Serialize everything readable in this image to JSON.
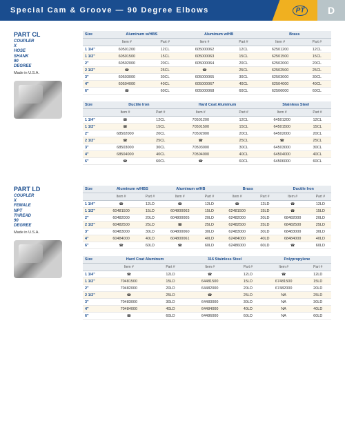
{
  "header": {
    "title": "Special Cam & Groove — 90 Degree Elbows",
    "logo": "PT",
    "letter": "D"
  },
  "parts": [
    {
      "title": "PART CL",
      "desc": "COUPLER X HOSE SHANK 90 DEGREE",
      "made": "Made in U.S.A.",
      "tables": [
        {
          "materials": [
            "Aluminum w/HBS",
            "Aluminum w/HB",
            "Brass"
          ],
          "cols_per_material": 2,
          "sub_headers": [
            "Item #",
            "Part #"
          ],
          "rows": [
            {
              "size": "1 1/4\"",
              "cells": [
                "60501200",
                "12CL",
                "605000062",
                "12CL",
                "62501200",
                "12CL"
              ]
            },
            {
              "size": "1 1/2\"",
              "cells": [
                "60501500",
                "15CL",
                "605000063",
                "15CL",
                "62501500",
                "15CL"
              ]
            },
            {
              "size": "2\"",
              "cells": [
                "60502000",
                "20CL",
                "605000064",
                "20CL",
                "62502000",
                "20CL"
              ]
            },
            {
              "size": "2 1/2\"",
              "cells": [
                "☎",
                "25CL",
                "☎",
                "25CL",
                "62502500",
                "25CL"
              ]
            },
            {
              "size": "3\"",
              "cells": [
                "60503000",
                "30CL",
                "605000065",
                "30CL",
                "62503000",
                "30CL"
              ]
            },
            {
              "size": "4\"",
              "cells": [
                "60504000",
                "40CL",
                "605000067",
                "40CL",
                "62504000",
                "40CL"
              ]
            },
            {
              "size": "6\"",
              "cells": [
                "☎",
                "60CL",
                "605000068",
                "60CL",
                "62506000",
                "60CL"
              ]
            }
          ]
        },
        {
          "materials": [
            "Ductile Iron",
            "Hard Coat Aluminum",
            "Stainless Steel"
          ],
          "cols_per_material": 2,
          "sub_headers": [
            "Item #",
            "Part #"
          ],
          "rows": [
            {
              "size": "1 1/4\"",
              "cells": [
                "☎",
                "12CL",
                "70501200",
                "12CL",
                "64501200",
                "12CL"
              ]
            },
            {
              "size": "1 1/2\"",
              "cells": [
                "☎",
                "15CL",
                "70501500",
                "15CL",
                "64501500",
                "15CL"
              ]
            },
            {
              "size": "2\"",
              "cells": [
                "68502000",
                "20CL",
                "70502000",
                "20CL",
                "64502000",
                "20CL"
              ]
            },
            {
              "size": "2 1/2\"",
              "cells": [
                "☎",
                "25CL",
                "☎",
                "25CL",
                "☎",
                "25CL"
              ]
            },
            {
              "size": "3\"",
              "cells": [
                "68503000",
                "30CL",
                "70503000",
                "30CL",
                "64503000",
                "30CL"
              ]
            },
            {
              "size": "4\"",
              "cells": [
                "68504000",
                "40CL",
                "70504000",
                "40CL",
                "64504000",
                "40CL"
              ]
            },
            {
              "size": "6\"",
              "cells": [
                "☎",
                "60CL",
                "☎",
                "60CL",
                "64506000",
                "60CL"
              ]
            }
          ]
        }
      ]
    },
    {
      "title": "PART LD",
      "desc": "COUPLER X FEMALE NPT THREAD 90 DEGREE",
      "made": "Made in U.S.A.",
      "tables": [
        {
          "materials": [
            "Aluminum w/HBS",
            "Aluminum w/HB",
            "Brass",
            "Ductile Iron"
          ],
          "cols_per_material": 2,
          "sub_headers": [
            "Item #",
            "Part #"
          ],
          "rows": [
            {
              "size": "1 1/4\"",
              "cells": [
                "☎",
                "12LD",
                "☎",
                "12LD",
                "☎",
                "12LD",
                "☎",
                "12LD"
              ]
            },
            {
              "size": "1 1/2\"",
              "cells": [
                "60481500",
                "15LD",
                "604800063",
                "15LD",
                "62481500",
                "15LD",
                "☎",
                "15LD"
              ]
            },
            {
              "size": "2\"",
              "cells": [
                "60482000",
                "20LD",
                "604800005",
                "20LD",
                "62482000",
                "20LD",
                "68482000",
                "20LD"
              ]
            },
            {
              "size": "2 1/2\"",
              "cells": [
                "60482500",
                "25LD",
                "☎",
                "25LD",
                "62482500",
                "25LD",
                "68482500",
                "25LD"
              ]
            },
            {
              "size": "3\"",
              "cells": [
                "60483000",
                "30LD",
                "604800060",
                "30LD",
                "62483000",
                "30LD",
                "68483000",
                "30LD"
              ]
            },
            {
              "size": "4\"",
              "cells": [
                "60484000",
                "40LD",
                "604800061",
                "40LD",
                "62484000",
                "40LD",
                "68484000",
                "40LD"
              ]
            },
            {
              "size": "6\"",
              "cells": [
                "☎",
                "60LD",
                "☎",
                "60LD",
                "62486000",
                "60LD",
                "☎",
                "60LD"
              ]
            }
          ]
        },
        {
          "materials": [
            "Hard Coat Aluminum",
            "316 Stainless Steel",
            "Polypropylene"
          ],
          "cols_per_material": 2,
          "sub_headers": [
            "Item #",
            "Part #"
          ],
          "rows": [
            {
              "size": "1 1/4\"",
              "cells": [
                "☎",
                "12LD",
                "☎",
                "12LD",
                "☎",
                "12LD"
              ]
            },
            {
              "size": "1 1/2\"",
              "cells": [
                "70481500",
                "15LD",
                "64481500",
                "15LD",
                "67481500",
                "15LD"
              ]
            },
            {
              "size": "2\"",
              "cells": [
                "70482000",
                "20LD",
                "64482000",
                "20LD",
                "67482000",
                "20LD"
              ]
            },
            {
              "size": "2 1/2\"",
              "cells": [
                "☎",
                "25LD",
                "☎",
                "25LD",
                "NA",
                "25LD"
              ]
            },
            {
              "size": "3\"",
              "cells": [
                "70483000",
                "30LD",
                "64483000",
                "30LD",
                "NA",
                "30LD"
              ]
            },
            {
              "size": "4\"",
              "cells": [
                "70484000",
                "40LD",
                "64484000",
                "40LD",
                "NA",
                "40LD"
              ]
            },
            {
              "size": "6\"",
              "cells": [
                "☎",
                "60LD",
                "64486000",
                "60LD",
                "NA",
                "60LD"
              ]
            }
          ]
        }
      ]
    }
  ]
}
